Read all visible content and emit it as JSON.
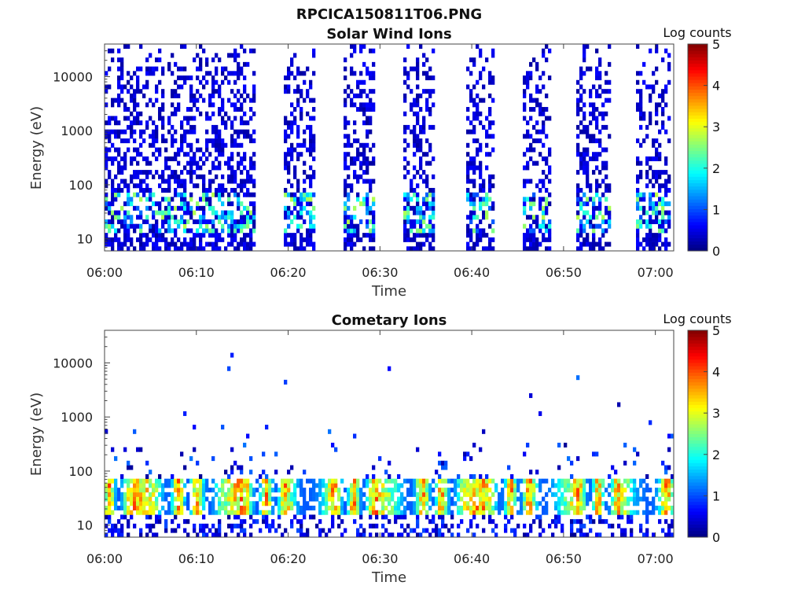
{
  "figure_title": "RPCICA150811T06.PNG",
  "colorbar_tick_labels": [
    "0",
    "1",
    "2",
    "3",
    "4",
    "5"
  ],
  "chart_data": [
    {
      "type": "heatmap",
      "title": "Solar Wind Ions",
      "xlabel": "Time",
      "ylabel": "Energy (eV)",
      "colorbar_label": "Log counts",
      "colorbar_range": [
        0,
        5
      ],
      "colormap": "jet",
      "yscale": "log",
      "xlim": [
        "06:00",
        "07:02"
      ],
      "ylim": [
        6,
        40000
      ],
      "x_tick_labels": [
        "06:00",
        "06:10",
        "06:20",
        "06:30",
        "06:40",
        "06:50",
        "07:00"
      ],
      "y_tick_labels": [
        "10",
        "100",
        "1000",
        "10000"
      ],
      "y_tick_values": [
        10,
        100,
        1000,
        10000
      ],
      "active_intervals_minutes": [
        [
          0,
          16.5
        ],
        [
          19.5,
          23
        ],
        [
          26,
          29.5
        ],
        [
          32.5,
          36
        ],
        [
          39.5,
          42.5
        ],
        [
          45.5,
          48.8
        ],
        [
          51.5,
          55
        ],
        [
          58,
          61.5
        ]
      ],
      "peak_energy_eV": 30,
      "peak_log_counts": 2.8
    },
    {
      "type": "heatmap",
      "title": "Cometary Ions",
      "xlabel": "Time",
      "ylabel": "Energy (eV)",
      "colorbar_label": "Log counts",
      "colorbar_range": [
        0,
        5
      ],
      "colormap": "jet",
      "yscale": "log",
      "xlim": [
        "06:00",
        "07:02"
      ],
      "ylim": [
        6,
        40000
      ],
      "x_tick_labels": [
        "06:00",
        "06:10",
        "06:20",
        "06:30",
        "06:40",
        "06:50",
        "07:00"
      ],
      "y_tick_labels": [
        "10",
        "100",
        "1000",
        "10000"
      ],
      "y_tick_values": [
        10,
        100,
        1000,
        10000
      ],
      "peak_energy_eV": 35,
      "peak_log_counts": 4.2
    }
  ]
}
